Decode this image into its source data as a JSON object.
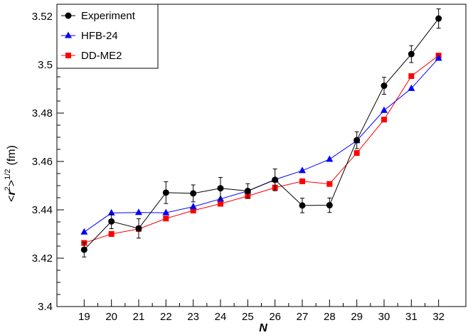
{
  "chart_data": {
    "type": "line",
    "title": "",
    "xlabel": "N",
    "ylabel": {
      "prefix": "<",
      "r": "r",
      "sup_two": "2",
      "close": ">",
      "sup_half": "1/2",
      "unit": "(fm)"
    },
    "x": [
      19,
      20,
      21,
      22,
      23,
      24,
      25,
      26,
      27,
      28,
      29,
      30,
      31,
      32
    ],
    "xlim": [
      18,
      33
    ],
    "ylim": [
      3.4,
      3.525
    ],
    "yticks": [
      3.4,
      3.42,
      3.44,
      3.46,
      3.48,
      3.5,
      3.52
    ],
    "ytick_labels": [
      "3.4",
      "3.42",
      "3.44",
      "3.46",
      "3.48",
      "3.5",
      "3.52"
    ],
    "grid": false,
    "legend_position": "top-left",
    "series": [
      {
        "name": "Experiment",
        "color": "#000000",
        "marker": "circle",
        "values": [
          3.4235,
          3.4352,
          3.4323,
          3.4471,
          3.4468,
          3.4489,
          3.4478,
          3.4524,
          3.4418,
          3.4419,
          3.4688,
          3.4913,
          3.5044,
          3.5191
        ],
        "errors": [
          0.003,
          0.003,
          0.004,
          0.0045,
          0.0035,
          0.0045,
          0.003,
          0.0045,
          0.003,
          0.003,
          0.0035,
          0.0035,
          0.0035,
          0.004
        ]
      },
      {
        "name": "HFB-24",
        "color": "#0000ff",
        "marker": "triangle",
        "values": [
          3.4308,
          3.4387,
          3.4389,
          3.4388,
          3.4413,
          3.4445,
          3.4478,
          3.4525,
          3.4562,
          3.4609,
          3.4686,
          3.4811,
          3.4902,
          3.5027
        ]
      },
      {
        "name": "DD-ME2",
        "color": "#ff0000",
        "marker": "square",
        "values": [
          3.4263,
          3.43,
          3.4321,
          3.4364,
          3.4397,
          3.4425,
          3.4457,
          3.4492,
          3.4518,
          3.4507,
          3.4635,
          3.4773,
          3.4953,
          3.5038
        ]
      }
    ]
  }
}
